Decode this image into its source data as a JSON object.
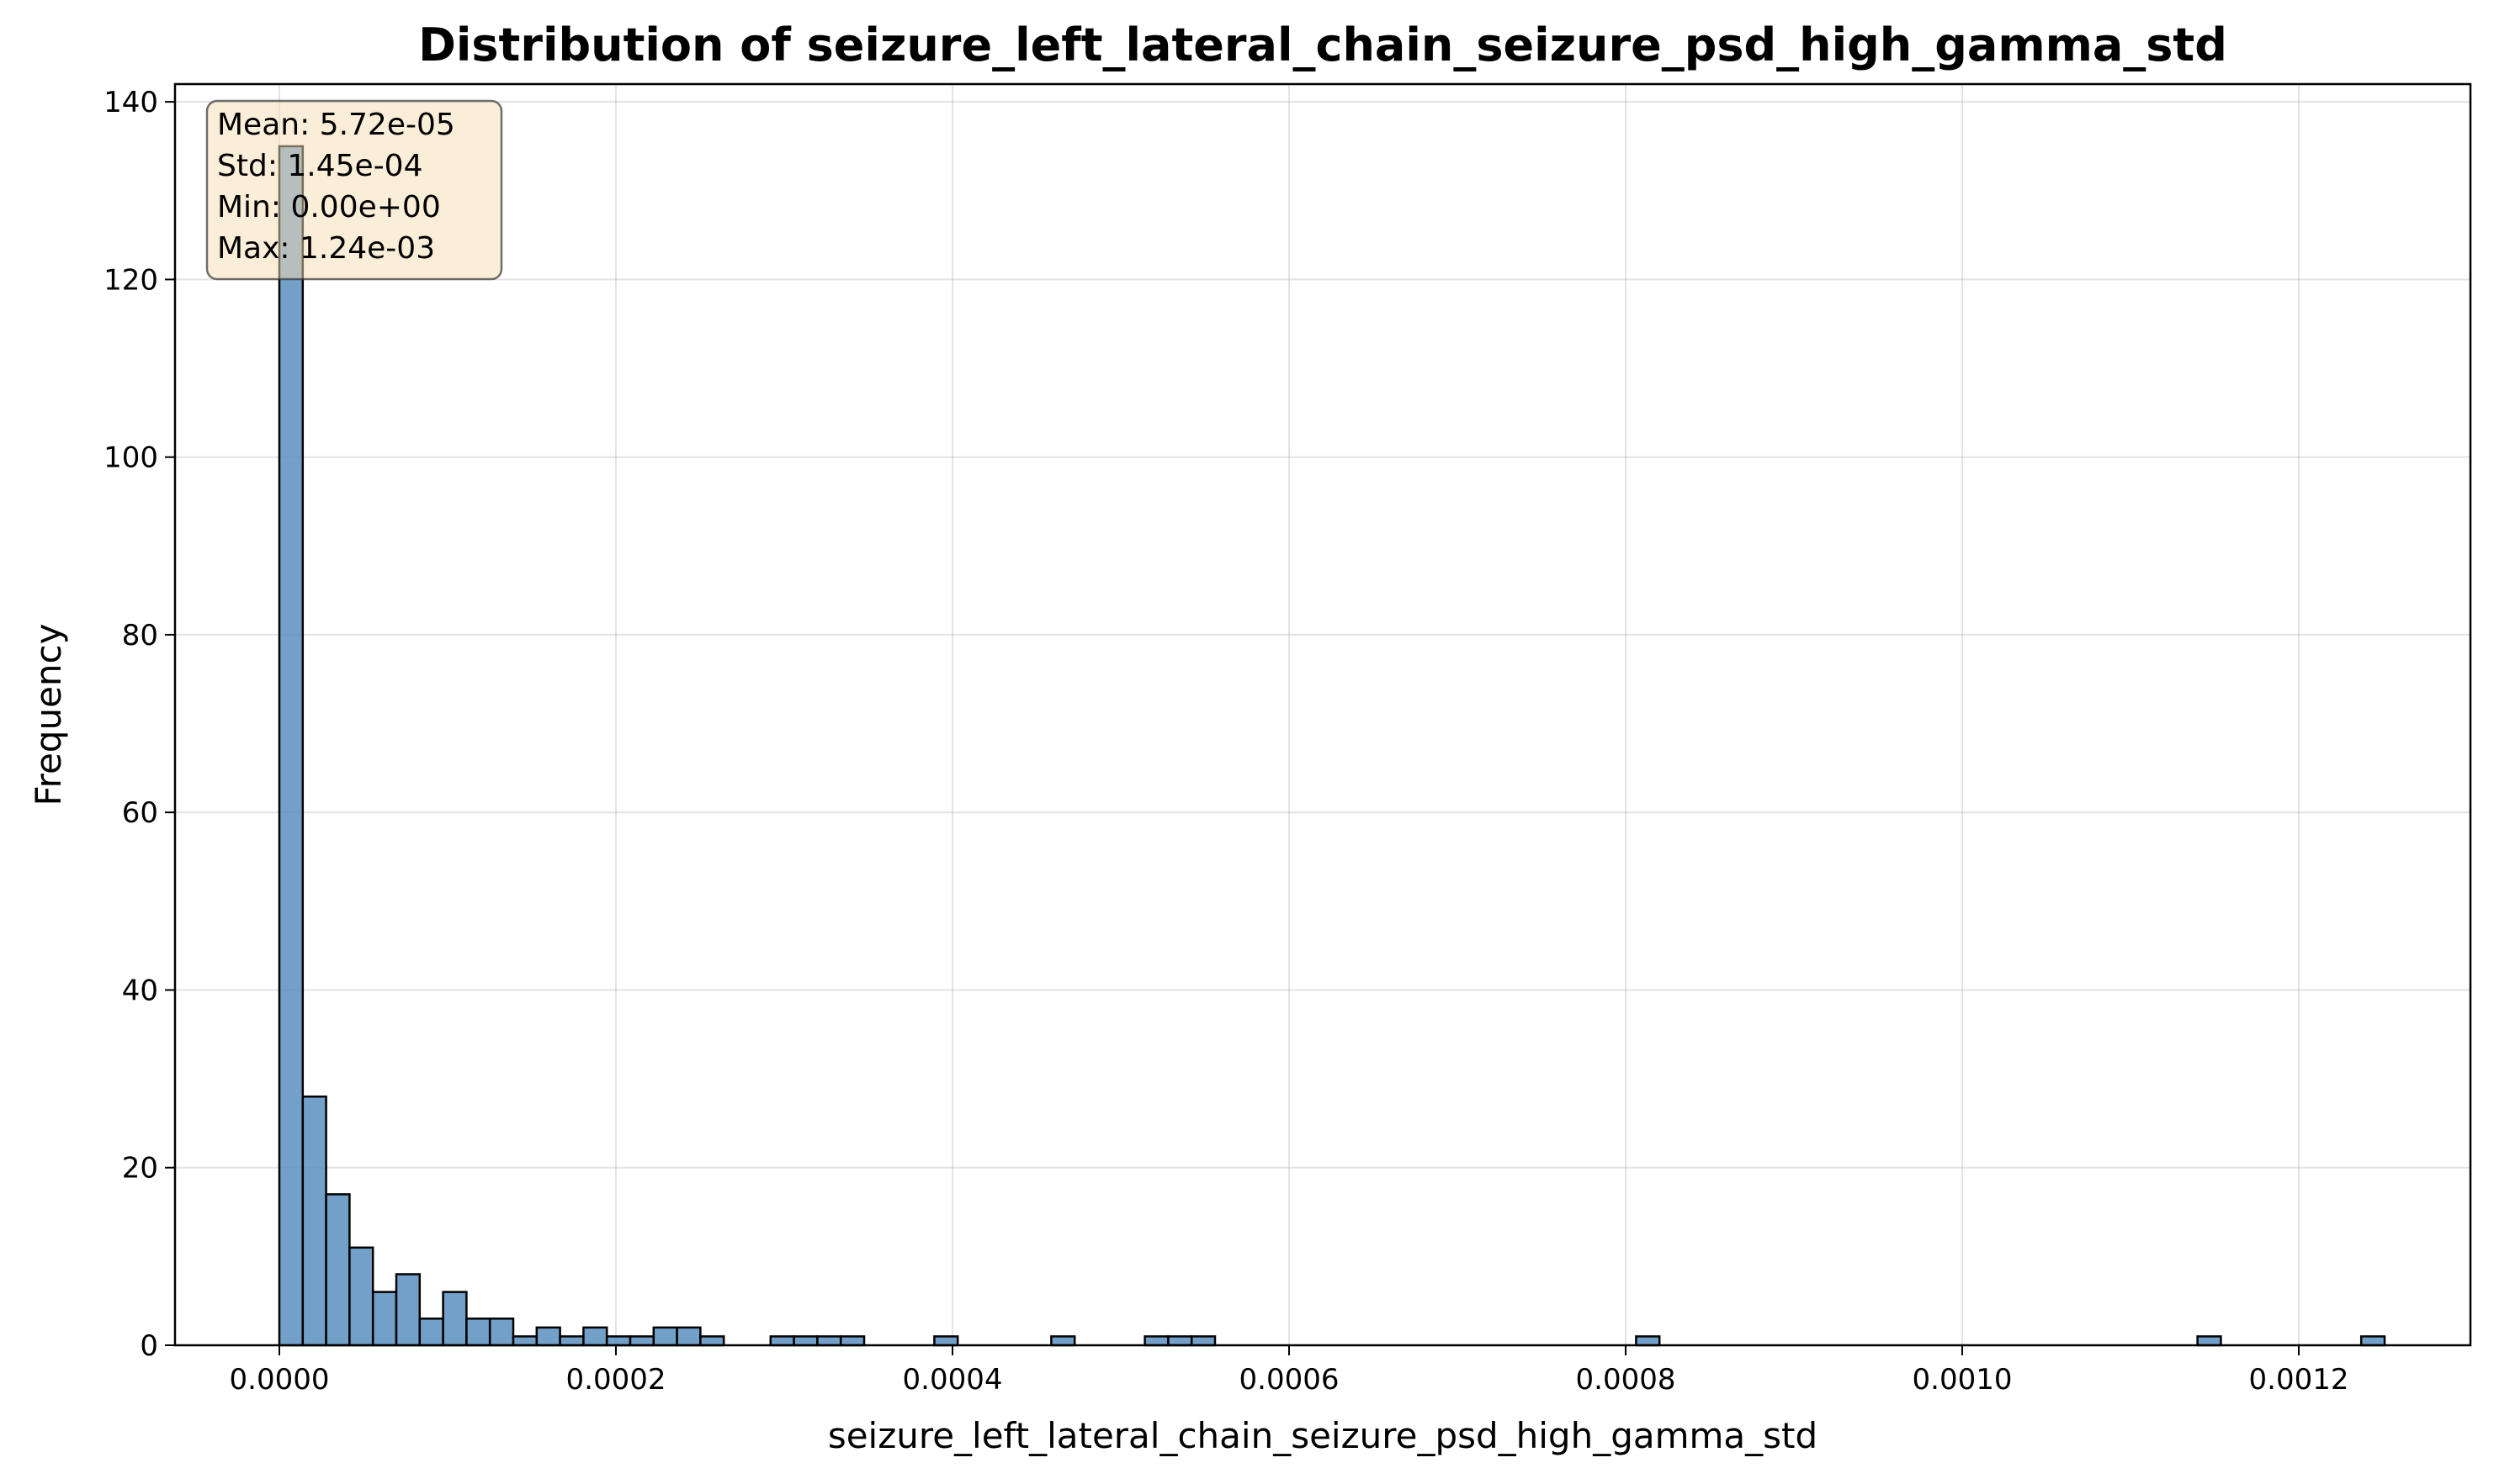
{
  "chart_data": {
    "type": "bar",
    "title": "Distribution of seizure_left_lateral_chain_seizure_psd_high_gamma_std",
    "xlabel": "seizure_left_lateral_chain_seizure_psd_high_gamma_std",
    "ylabel": "Frequency",
    "xlim": [
      -6.2e-05,
      0.001302
    ],
    "ylim": [
      0,
      142
    ],
    "x_ticks": [
      0.0,
      0.0002,
      0.0004,
      0.0006,
      0.0008,
      0.001,
      0.0012
    ],
    "x_tick_labels": [
      "0.0000",
      "0.0002",
      "0.0004",
      "0.0006",
      "0.0008",
      "0.0010",
      "0.0012"
    ],
    "y_ticks": [
      0,
      20,
      40,
      60,
      80,
      100,
      120,
      140
    ],
    "y_tick_labels": [
      "0",
      "20",
      "40",
      "60",
      "80",
      "100",
      "120",
      "140"
    ],
    "grid": true,
    "bar_color": "#5b8fbf",
    "bin_start": 0.0,
    "bin_width": 1.39e-05,
    "values": [
      135,
      28,
      17,
      11,
      6,
      8,
      3,
      6,
      3,
      3,
      1,
      2,
      1,
      2,
      1,
      1,
      2,
      2,
      1,
      0,
      0,
      1,
      1,
      1,
      1,
      0,
      0,
      0,
      1,
      0,
      0,
      0,
      0,
      1,
      0,
      0,
      0,
      1,
      1,
      1,
      0,
      0,
      0,
      0,
      0,
      0,
      0,
      0,
      0,
      0,
      0,
      0,
      0,
      0,
      0,
      0,
      0,
      0,
      1,
      0,
      0,
      0,
      0,
      0,
      0,
      0,
      0,
      0,
      0,
      0,
      0,
      0,
      0,
      0,
      0,
      0,
      0,
      0,
      0,
      0,
      0,
      0,
      1,
      0,
      0,
      0,
      0,
      0,
      0,
      1
    ],
    "stats_box": {
      "lines": [
        "Mean: 5.72e-05",
        "Std: 1.45e-04",
        "Min: 0.00e+00",
        "Max: 1.24e-03"
      ],
      "placement": "top-left"
    }
  }
}
